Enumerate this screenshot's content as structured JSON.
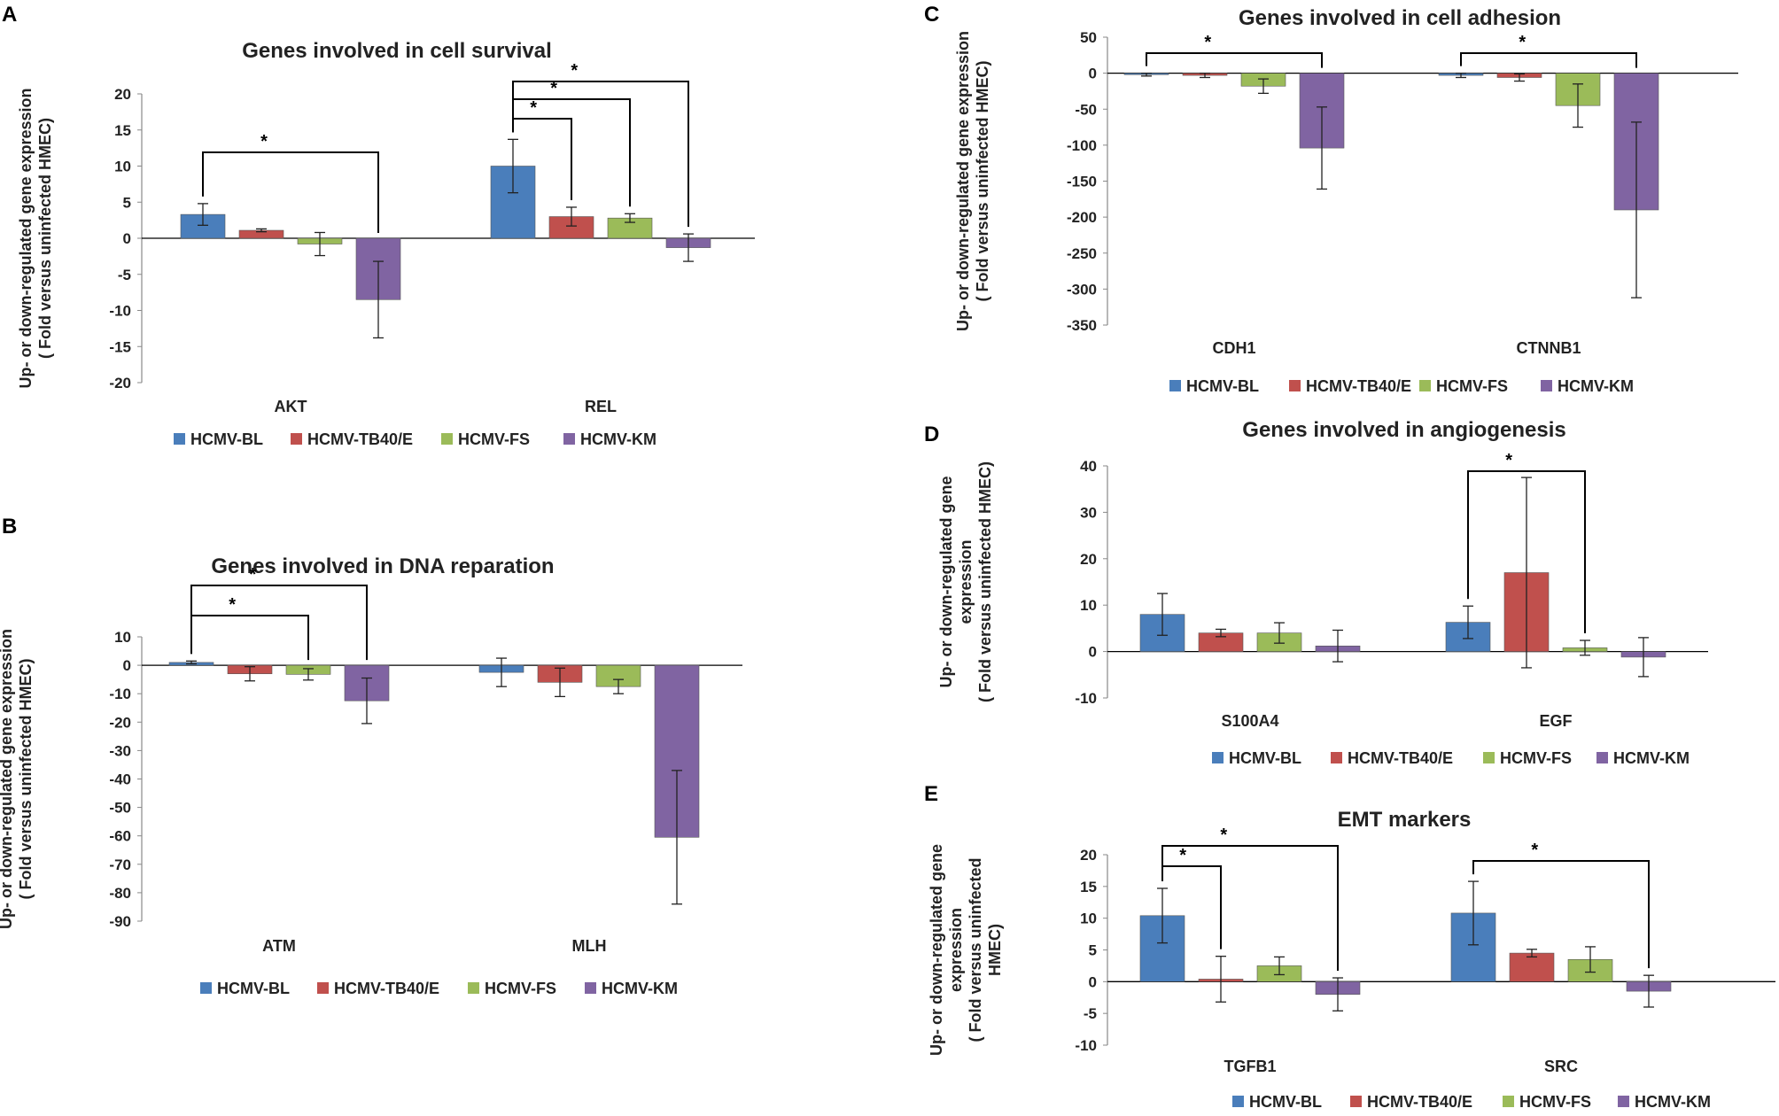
{
  "series": [
    {
      "name": "HCMV-BL",
      "color": "#4a7ebb"
    },
    {
      "name": "HCMV-TB40/E",
      "color": "#c0504d"
    },
    {
      "name": "HCMV-FS",
      "color": "#9bbb59"
    },
    {
      "name": "HCMV-KM",
      "color": "#8064a2"
    }
  ],
  "chart_data": [
    {
      "panel": "A",
      "type": "bar",
      "title": "Genes involved in cell survival",
      "ylabel": [
        "Up- or down-regulated gene expression",
        "( Fold versus uninfected HMEC)"
      ],
      "xlabel": "",
      "categories": [
        "AKT",
        "REL"
      ],
      "ylim": [
        -20,
        20
      ],
      "yticks": [
        20,
        15,
        10,
        5,
        0,
        -5,
        -10,
        -15,
        -20
      ],
      "legend": "bottom",
      "series": [
        {
          "name": "HCMV-BL",
          "values": [
            3.3,
            10.0
          ],
          "errors": [
            1.5,
            3.7
          ]
        },
        {
          "name": "HCMV-TB40/E",
          "values": [
            1.1,
            3.0
          ],
          "errors": [
            0.2,
            1.3
          ]
        },
        {
          "name": "HCMV-FS",
          "values": [
            -0.8,
            2.8
          ],
          "errors": [
            1.6,
            0.6
          ]
        },
        {
          "name": "HCMV-KM",
          "values": [
            -8.5,
            -1.3
          ],
          "errors": [
            5.3,
            1.9
          ]
        }
      ],
      "significance": [
        {
          "label": "*",
          "category": 0,
          "from": 0,
          "to": 3
        },
        {
          "label": "*",
          "category": 1,
          "from": 0,
          "to": 1
        },
        {
          "label": "*",
          "category": 1,
          "from": 0,
          "to": 2
        },
        {
          "label": "*",
          "category": 1,
          "from": 0,
          "to": 3
        }
      ]
    },
    {
      "panel": "B",
      "type": "bar",
      "title": "Genes involved in DNA reparation",
      "ylabel": [
        "Up- or down-regulated gene expression",
        "( Fold versus uninfected HMEC)"
      ],
      "xlabel": "",
      "categories": [
        "ATM",
        "MLH"
      ],
      "ylim": [
        -90,
        10
      ],
      "yticks": [
        10,
        0,
        -10,
        -20,
        -30,
        -40,
        -50,
        -60,
        -70,
        -80,
        -90
      ],
      "legend": "bottom",
      "series": [
        {
          "name": "HCMV-BL",
          "values": [
            1.0,
            -2.5
          ],
          "errors": [
            0.5,
            5.0
          ]
        },
        {
          "name": "HCMV-TB40/E",
          "values": [
            -3.0,
            -6.0
          ],
          "errors": [
            2.5,
            5.0
          ]
        },
        {
          "name": "HCMV-FS",
          "values": [
            -3.2,
            -7.5
          ],
          "errors": [
            2.0,
            2.5
          ]
        },
        {
          "name": "HCMV-KM",
          "values": [
            -12.5,
            -60.5
          ],
          "errors": [
            8.0,
            23.5
          ]
        }
      ],
      "significance": [
        {
          "label": "*",
          "category": 0,
          "from": 0,
          "to": 2
        },
        {
          "label": "*",
          "category": 0,
          "from": 0,
          "to": 3
        }
      ]
    },
    {
      "panel": "C",
      "type": "bar",
      "title": "Genes involved in cell adhesion",
      "ylabel": [
        "Up- or down-regulated gene expression",
        "( Fold versus uninfected HMEC)"
      ],
      "xlabel": "",
      "categories": [
        "CDH1",
        "CTNNB1"
      ],
      "ylim": [
        -350,
        50
      ],
      "yticks": [
        50,
        0,
        -50,
        -100,
        -150,
        -200,
        -250,
        -300,
        -350
      ],
      "legend": "bottom",
      "series": [
        {
          "name": "HCMV-BL",
          "values": [
            -2,
            -3
          ],
          "errors": [
            2,
            3
          ]
        },
        {
          "name": "HCMV-TB40/E",
          "values": [
            -3,
            -6
          ],
          "errors": [
            3,
            5
          ]
        },
        {
          "name": "HCMV-FS",
          "values": [
            -18,
            -45
          ],
          "errors": [
            10,
            30
          ]
        },
        {
          "name": "HCMV-KM",
          "values": [
            -104,
            -190
          ],
          "errors": [
            57,
            122
          ]
        }
      ],
      "significance": [
        {
          "label": "*",
          "category": 0,
          "from": 0,
          "to": 3
        },
        {
          "label": "*",
          "category": 1,
          "from": 0,
          "to": 3
        }
      ]
    },
    {
      "panel": "D",
      "type": "bar",
      "title": "Genes involved in angiogenesis",
      "ylabel": [
        "Up- or down-regulated gene",
        "expression",
        "( Fold versus uninfected HMEC)"
      ],
      "xlabel": "",
      "categories": [
        "S100A4",
        "EGF"
      ],
      "ylim": [
        -10,
        40
      ],
      "yticks": [
        40,
        30,
        20,
        10,
        0,
        -10
      ],
      "legend": "bottom",
      "series": [
        {
          "name": "HCMV-BL",
          "values": [
            8.0,
            6.3
          ],
          "errors": [
            4.5,
            3.5
          ]
        },
        {
          "name": "HCMV-TB40/E",
          "values": [
            4.0,
            17.0
          ],
          "errors": [
            0.8,
            20.5
          ]
        },
        {
          "name": "HCMV-FS",
          "values": [
            4.0,
            0.8
          ],
          "errors": [
            2.2,
            1.6
          ]
        },
        {
          "name": "HCMV-KM",
          "values": [
            1.2,
            -1.2
          ],
          "errors": [
            3.4,
            4.2
          ]
        }
      ],
      "significance": [
        {
          "label": "*",
          "category": 1,
          "from": 0,
          "to": 2
        }
      ]
    },
    {
      "panel": "E",
      "type": "bar",
      "title": "EMT markers",
      "ylabel": [
        "Up- or down-regulated gene",
        "expression",
        "( Fold versus uninfected",
        "HMEC)"
      ],
      "xlabel": "",
      "categories": [
        "TGFB1",
        "SRC"
      ],
      "ylim": [
        -10,
        20
      ],
      "yticks": [
        20,
        15,
        10,
        5,
        0,
        -5,
        -10
      ],
      "legend": "bottom",
      "series": [
        {
          "name": "HCMV-BL",
          "values": [
            10.4,
            10.8
          ],
          "errors": [
            4.3,
            5.0
          ]
        },
        {
          "name": "HCMV-TB40/E",
          "values": [
            0.4,
            4.5
          ],
          "errors": [
            3.6,
            0.6
          ]
        },
        {
          "name": "HCMV-FS",
          "values": [
            2.5,
            3.5
          ],
          "errors": [
            1.4,
            2.0
          ]
        },
        {
          "name": "HCMV-KM",
          "values": [
            -2.0,
            -1.5
          ],
          "errors": [
            2.6,
            2.5
          ]
        }
      ],
      "significance": [
        {
          "label": "*",
          "category": 0,
          "from": 0,
          "to": 1
        },
        {
          "label": "*",
          "category": 0,
          "from": 0,
          "to": 3
        },
        {
          "label": "*",
          "category": 1,
          "from": 0,
          "to": 3
        }
      ]
    }
  ]
}
